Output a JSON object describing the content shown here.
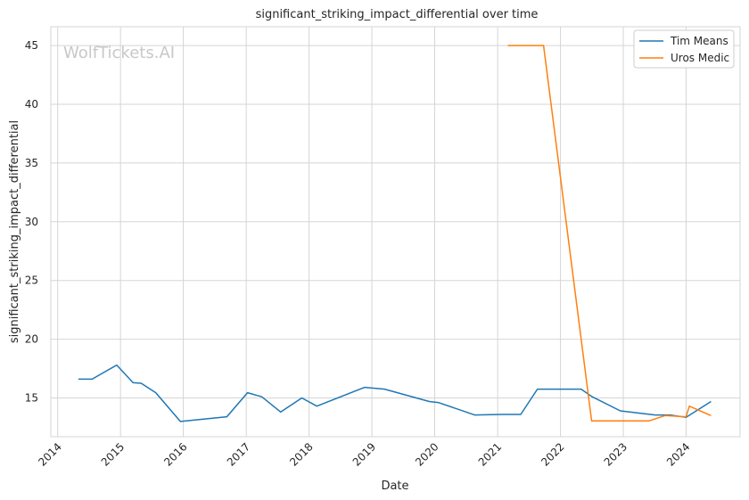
{
  "watermark": "WolfTickets.AI",
  "chart_data": {
    "type": "line",
    "title": "significant_striking_impact_differential over time",
    "xlabel": "Date",
    "ylabel": "significant_striking_impact_differential",
    "x_ticks": [
      "2014",
      "2015",
      "2016",
      "2017",
      "2018",
      "2019",
      "2020",
      "2021",
      "2022",
      "2023",
      "2024"
    ],
    "y_ticks": [
      15,
      20,
      25,
      30,
      35,
      40,
      45
    ],
    "xlim": [
      "2013-11-22",
      "2024-11-10"
    ],
    "ylim": [
      11.7,
      46.6
    ],
    "grid": true,
    "legend_position": "top-right",
    "series": [
      {
        "name": "Tim Means",
        "color": "#1f77b4",
        "points": [
          [
            "2014-05-01",
            16.6
          ],
          [
            "2014-07-20",
            16.6
          ],
          [
            "2014-12-10",
            17.8
          ],
          [
            "2015-03-15",
            16.3
          ],
          [
            "2015-05-01",
            16.25
          ],
          [
            "2015-07-25",
            15.45
          ],
          [
            "2015-12-15",
            13.0
          ],
          [
            "2016-09-10",
            13.4
          ],
          [
            "2017-01-08",
            15.45
          ],
          [
            "2017-04-01",
            15.1
          ],
          [
            "2017-07-20",
            13.8
          ],
          [
            "2017-11-20",
            15.0
          ],
          [
            "2018-02-15",
            14.3
          ],
          [
            "2018-11-20",
            15.9
          ],
          [
            "2019-03-15",
            15.75
          ],
          [
            "2019-12-01",
            14.7
          ],
          [
            "2020-01-25",
            14.6
          ],
          [
            "2020-08-20",
            13.55
          ],
          [
            "2021-01-20",
            13.6
          ],
          [
            "2021-05-15",
            13.6
          ],
          [
            "2021-08-20",
            15.75
          ],
          [
            "2022-05-01",
            15.75
          ],
          [
            "2022-07-05",
            15.1
          ],
          [
            "2022-12-15",
            13.9
          ],
          [
            "2023-07-05",
            13.55
          ],
          [
            "2023-10-01",
            13.55
          ],
          [
            "2024-01-01",
            13.35
          ],
          [
            "2024-05-25",
            14.7
          ]
        ]
      },
      {
        "name": "Uros Medic",
        "color": "#ff7f0e",
        "points": [
          [
            "2021-03-01",
            45.0
          ],
          [
            "2021-09-25",
            45.0
          ],
          [
            "2022-07-01",
            13.05
          ],
          [
            "2023-06-01",
            13.05
          ],
          [
            "2023-09-01",
            13.5
          ],
          [
            "2024-01-01",
            13.4
          ],
          [
            "2024-01-20",
            14.3
          ],
          [
            "2024-05-25",
            13.5
          ]
        ]
      }
    ]
  }
}
